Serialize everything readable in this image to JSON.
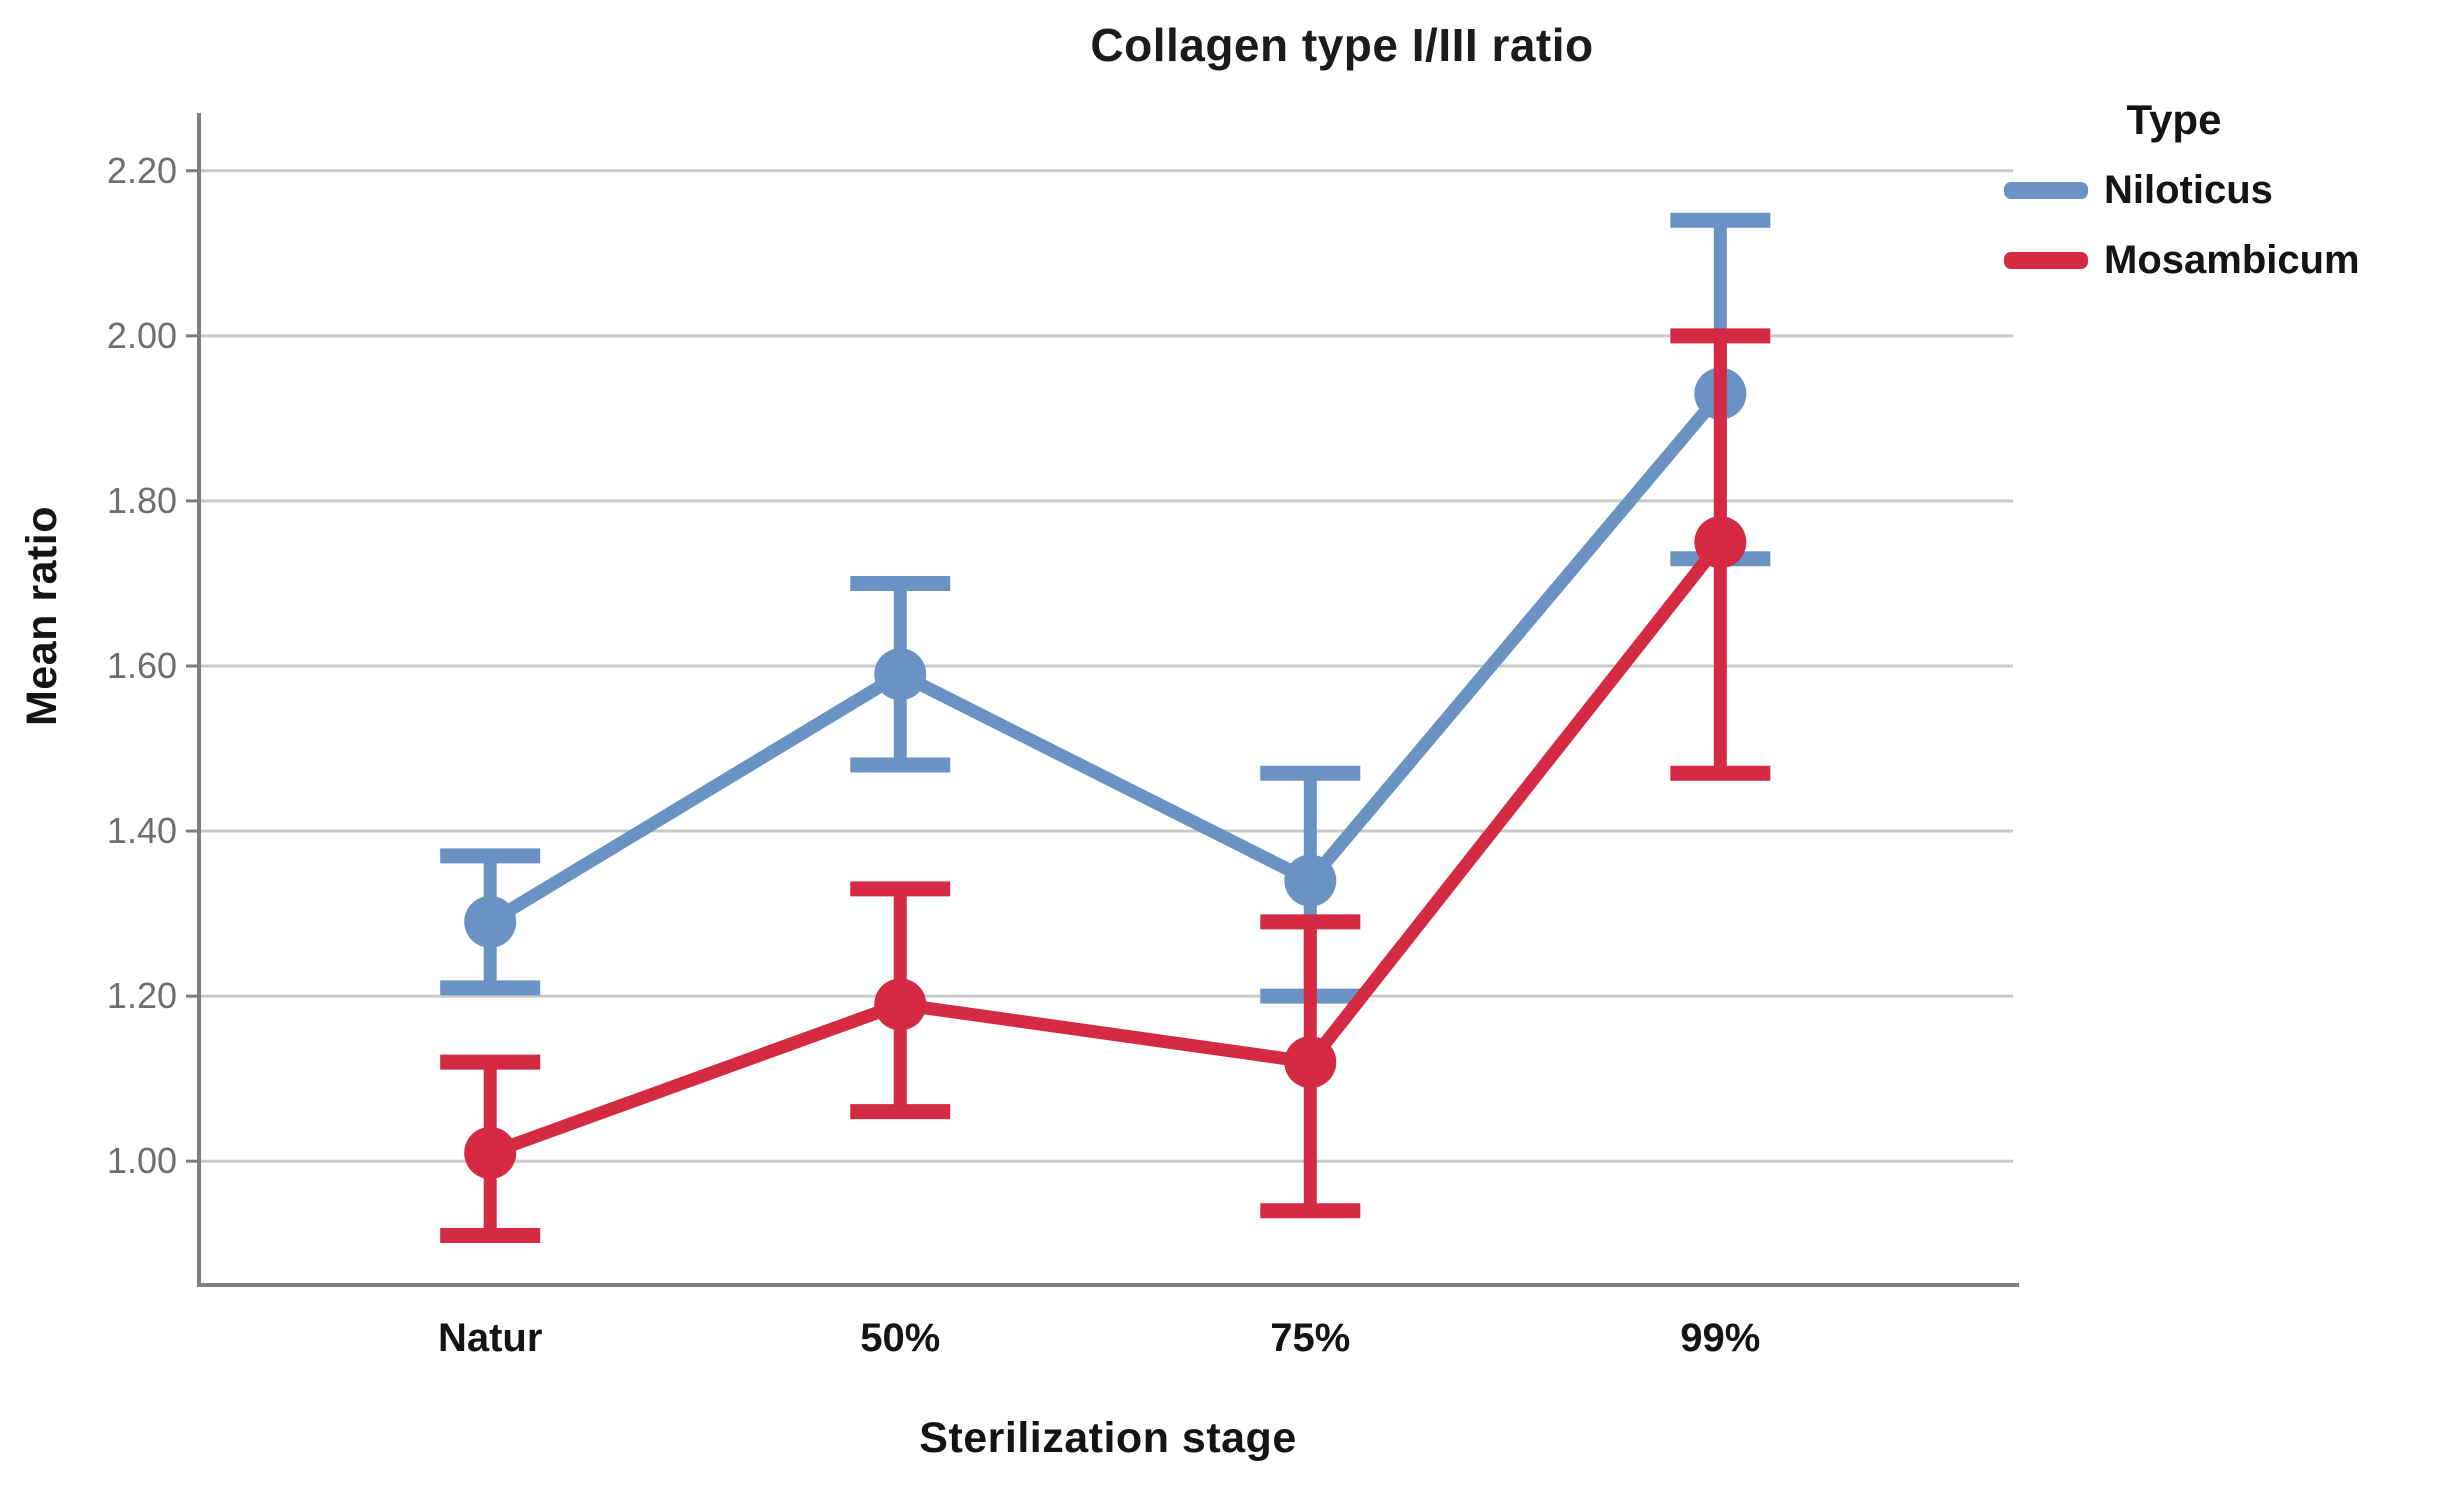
{
  "chart_data": {
    "type": "line",
    "title": "Collagen type I/III ratio",
    "xlabel": "Sterilization stage",
    "ylabel": "Mean ratio",
    "categories": [
      "Natur",
      "50%",
      "75%",
      "99%"
    ],
    "ytick_labels": [
      "1.00",
      "1.20",
      "1.40",
      "1.60",
      "1.80",
      "2.00",
      "2.20"
    ],
    "ylim": [
      0.85,
      2.27
    ],
    "grid": "horizontal-only",
    "legend_position": "top-right",
    "series": [
      {
        "name": "Niloticus",
        "color": "#6A93C3",
        "marker": "circle",
        "means": [
          1.29,
          1.59,
          1.34,
          1.93
        ],
        "err_upper": [
          1.37,
          1.7,
          1.47,
          2.14
        ],
        "err_lower": [
          1.21,
          1.48,
          1.2,
          1.73
        ]
      },
      {
        "name": "Mosambicum",
        "color": "#D42A43",
        "marker": "circle",
        "means": [
          1.01,
          1.19,
          1.12,
          1.75
        ],
        "err_upper": [
          1.12,
          1.33,
          1.29,
          2.0
        ],
        "err_lower": [
          0.91,
          1.06,
          0.94,
          1.47
        ]
      }
    ],
    "style_colors": {
      "grid_line": "#C9C9C9",
      "axis_line": "#7E7E7E",
      "y_tick_label": "#6E6E6E",
      "category_label": "#141414"
    }
  },
  "legend": {
    "title": "Type"
  }
}
